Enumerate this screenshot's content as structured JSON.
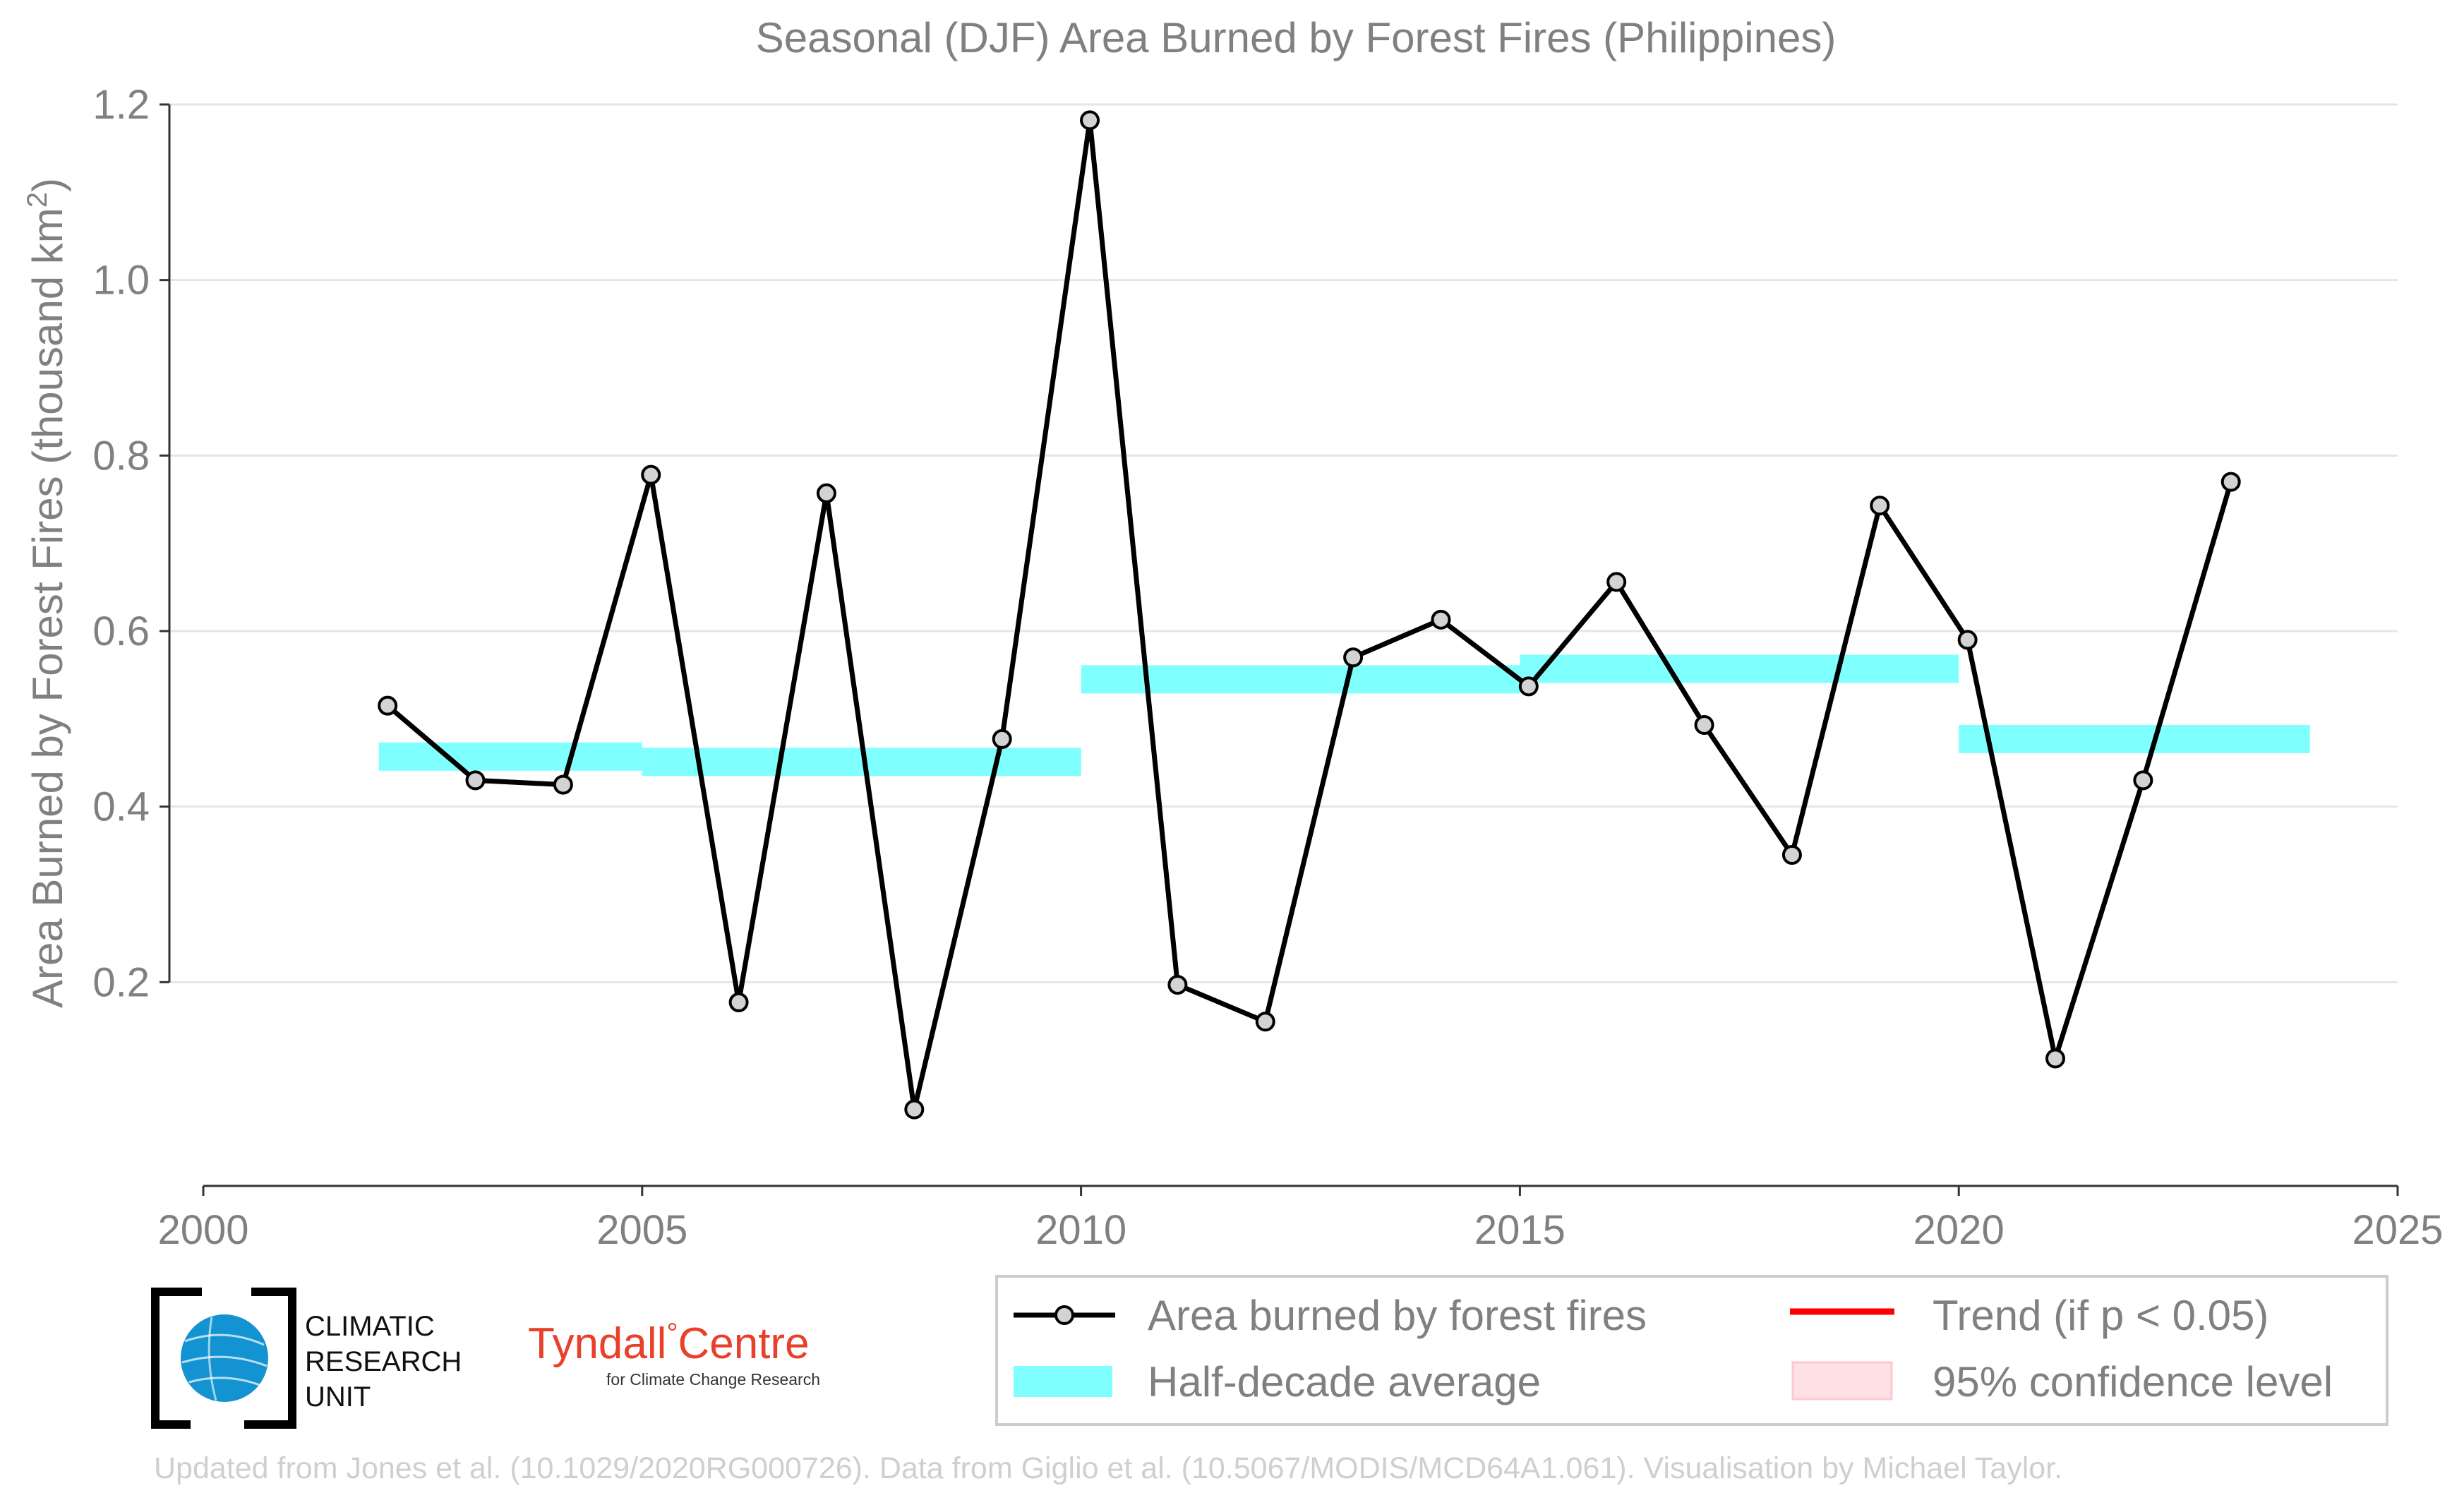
{
  "chart_data": {
    "type": "line",
    "title": "Seasonal (DJF) Area Burned by Forest Fires (Philippines)",
    "ylabel": "Area Burned by Forest Fires (thousand km²)",
    "xlabel": "",
    "xlim": [
      2000,
      2025
    ],
    "ylim": [
      0,
      1.2
    ],
    "x_ticks": [
      2000,
      2005,
      2010,
      2015,
      2020,
      2025
    ],
    "x_tick_labels": [
      "2000",
      "2005",
      "2010",
      "2015",
      "2020",
      "2025"
    ],
    "y_ticks": [
      0.2,
      0.4,
      0.6,
      0.8,
      1.0,
      1.2
    ],
    "y_tick_labels": [
      "0.2",
      "0.4",
      "0.6",
      "0.8",
      "1.0",
      "1.2"
    ],
    "grid": "horizontal",
    "legend_position": "bottom-right (below plot)",
    "series": [
      {
        "name": "Area burned by forest fires",
        "color": "#000000",
        "marker_fill": "#d3d3d3",
        "x": [
          2002,
          2003,
          2004,
          2005,
          2006,
          2007,
          2008,
          2009,
          2010,
          2011,
          2012,
          2013,
          2014,
          2015,
          2016,
          2017,
          2018,
          2019,
          2020,
          2021,
          2022,
          2023
        ],
        "values": [
          0.515,
          0.43,
          0.425,
          0.778,
          0.177,
          0.757,
          0.055,
          0.477,
          1.182,
          0.197,
          0.155,
          0.57,
          0.613,
          0.537,
          0.656,
          0.493,
          0.345,
          0.743,
          0.59,
          0.113,
          0.43,
          0.77
        ]
      }
    ],
    "half_decade_averages": {
      "name": "Half-decade average",
      "color": "#80ffff",
      "segments": [
        {
          "x0": 2002,
          "x1": 2005,
          "value": 0.457
        },
        {
          "x0": 2005,
          "x1": 2010,
          "value": 0.451
        },
        {
          "x0": 2010,
          "x1": 2015,
          "value": 0.545
        },
        {
          "x0": 2015,
          "x1": 2020,
          "value": 0.557
        },
        {
          "x0": 2020,
          "x1": 2024,
          "value": 0.477
        }
      ]
    },
    "legend": [
      {
        "label": "Area burned by forest fires",
        "kind": "line-marker",
        "color": "#000000"
      },
      {
        "label": "Trend (if p < 0.05)",
        "kind": "line",
        "color": "#ff0000"
      },
      {
        "label": "Half-decade average",
        "kind": "band",
        "color": "#80ffff"
      },
      {
        "label": "95% confidence level",
        "kind": "patch",
        "color": "#ffe0e3"
      }
    ]
  },
  "logos": {
    "cru": {
      "line1": "CLIMATIC",
      "line2": "RESEARCH",
      "line3": "UNIT",
      "icon": "globe-icon"
    },
    "tyndall": {
      "name": "Tyndall",
      "degree": "°",
      "name2": "Centre",
      "subtitle": "for Climate Change Research",
      "color": "#e8402a"
    }
  },
  "footer": "Updated from Jones et al. (10.1029/2020RG000726). Data from Giglio et al. (10.5067/MODIS/MCD64A1.061). Visualisation by Michael Taylor."
}
